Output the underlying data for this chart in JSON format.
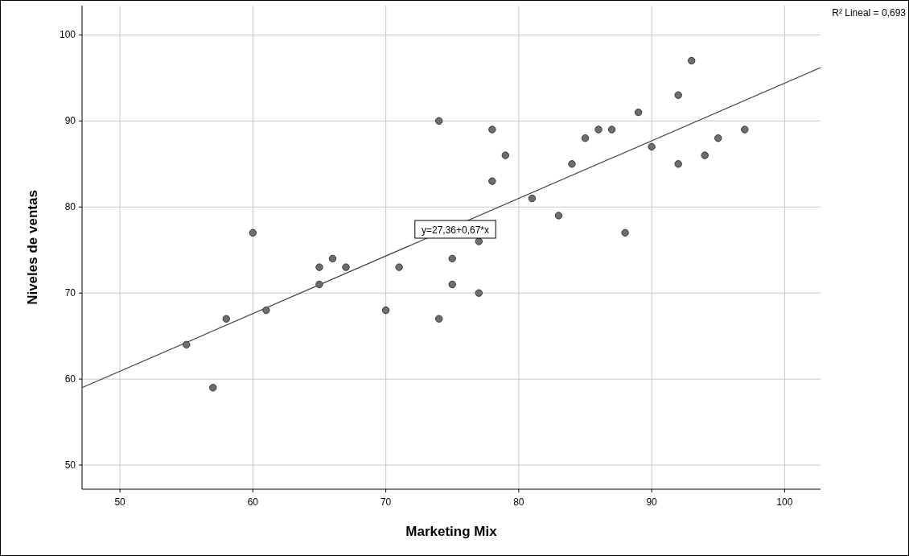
{
  "chart_data": {
    "type": "scatter",
    "xlabel": "Marketing Mix",
    "ylabel": "Niveles de ventas",
    "xlim": [
      47.15,
      102.7
    ],
    "ylim": [
      47.2,
      103.4
    ],
    "xticks": [
      50,
      60,
      70,
      80,
      90,
      100
    ],
    "yticks": [
      50,
      60,
      70,
      80,
      90,
      100
    ],
    "grid": true,
    "marker": "circle",
    "series": [
      {
        "color": "#6e6e6e",
        "x": [
          55,
          57,
          58,
          60,
          61,
          65,
          65,
          66,
          67,
          70,
          71,
          74,
          74,
          75,
          75,
          77,
          77,
          78,
          78,
          79,
          81,
          83,
          84,
          85,
          86,
          87,
          88,
          89,
          90,
          92,
          92,
          93,
          94,
          95,
          97
        ],
        "values": [
          64,
          59,
          67,
          77,
          68,
          73,
          71,
          74,
          73,
          68,
          73,
          90,
          67,
          74,
          71,
          76,
          70,
          89,
          83,
          86,
          81,
          79,
          85,
          88,
          89,
          89,
          77,
          91,
          87,
          93,
          85,
          97,
          86,
          88,
          89
        ]
      },
      {
        "type": "line",
        "marker": "none",
        "color": "#404040",
        "x": [
          47.15,
          102.7
        ],
        "values": [
          59.0,
          96.2
        ]
      }
    ],
    "annotations": [
      "y=27,36+0,67*x",
      "R² Lineal = 0,693"
    ]
  }
}
